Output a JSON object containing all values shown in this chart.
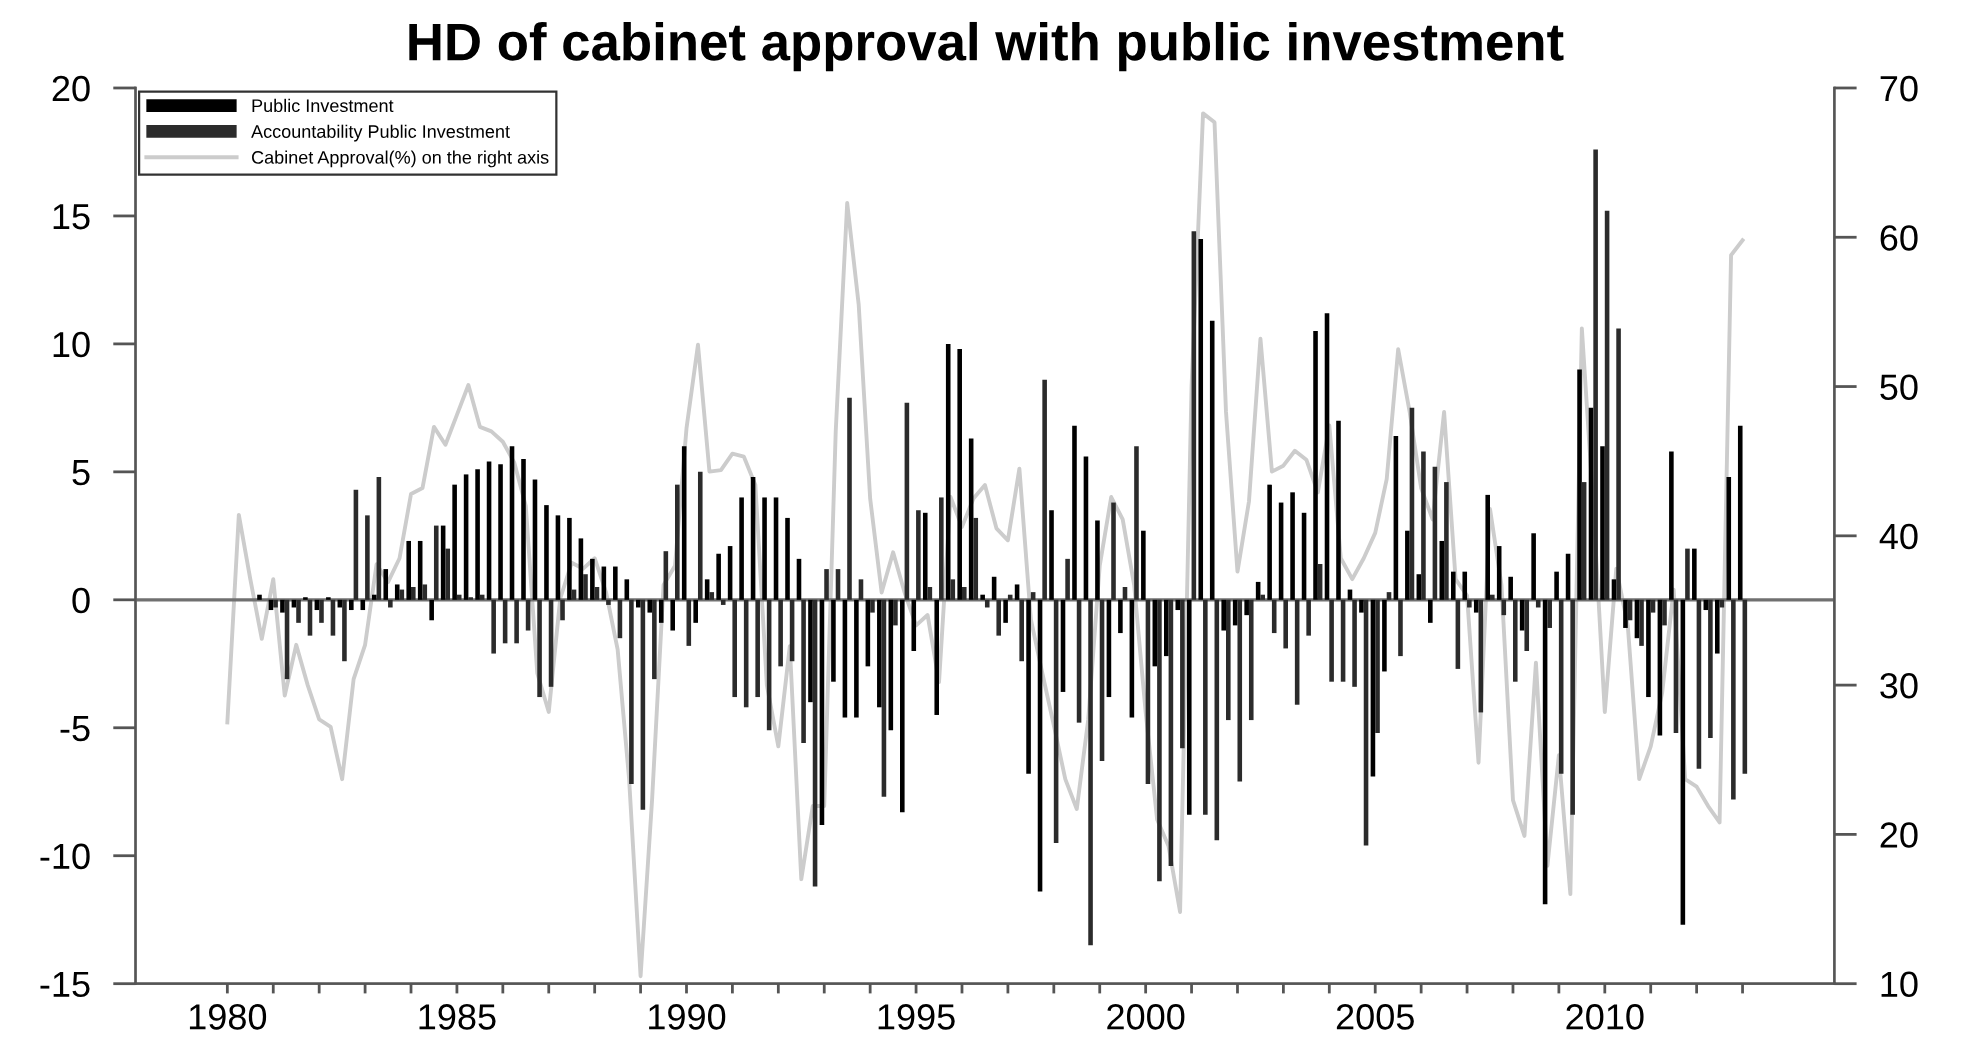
{
  "chart_data": {
    "type": "bar",
    "title": "HD of cabinet approval with public investment",
    "x": [
      1980,
      1980.25,
      1980.5,
      1980.75,
      1981,
      1981.25,
      1981.5,
      1981.75,
      1982,
      1982.25,
      1982.5,
      1982.75,
      1983,
      1983.25,
      1983.5,
      1983.75,
      1984,
      1984.25,
      1984.5,
      1984.75,
      1985,
      1985.25,
      1985.5,
      1985.75,
      1986,
      1986.25,
      1986.5,
      1986.75,
      1987,
      1987.25,
      1987.5,
      1987.75,
      1988,
      1988.25,
      1988.5,
      1988.75,
      1989,
      1989.25,
      1989.5,
      1989.75,
      1990,
      1990.25,
      1990.5,
      1990.75,
      1991,
      1991.25,
      1991.5,
      1991.75,
      1992,
      1992.25,
      1992.5,
      1992.75,
      1993,
      1993.25,
      1993.5,
      1993.75,
      1994,
      1994.25,
      1994.5,
      1994.75,
      1995,
      1995.25,
      1995.5,
      1995.75,
      1996,
      1996.25,
      1996.5,
      1996.75,
      1997,
      1997.25,
      1997.5,
      1997.75,
      1998,
      1998.25,
      1998.5,
      1998.75,
      1999,
      1999.25,
      1999.5,
      1999.75,
      2000,
      2000.25,
      2000.5,
      2000.75,
      2001,
      2001.25,
      2001.5,
      2001.75,
      2002,
      2002.25,
      2002.5,
      2002.75,
      2003,
      2003.25,
      2003.5,
      2003.75,
      2004,
      2004.25,
      2004.5,
      2004.75,
      2005,
      2005.25,
      2005.5,
      2005.75,
      2006,
      2006.25,
      2006.5,
      2006.75,
      2007,
      2007.25,
      2007.5,
      2007.75,
      2008,
      2008.25,
      2008.5,
      2008.75,
      2009,
      2009.25,
      2009.5,
      2009.75,
      2010,
      2010.25,
      2010.5,
      2010.75,
      2011,
      2011.25,
      2011.5,
      2011.75,
      2012,
      2012.25,
      2012.5,
      2012.75,
      2013
    ],
    "series": [
      {
        "name": "Public Investment",
        "color": "#000000",
        "values": [
          0,
          0,
          0,
          0.2,
          -0.4,
          -0.5,
          -0.3,
          0.1,
          -0.4,
          0.1,
          -0.3,
          -0.4,
          -0.4,
          0.2,
          1.2,
          0.6,
          2.3,
          2.3,
          -0.8,
          2.9,
          4.5,
          4.9,
          5.1,
          5.4,
          5.3,
          6.0,
          5.5,
          4.7,
          3.7,
          3.3,
          3.2,
          2.4,
          1.6,
          1.3,
          1.3,
          0.8,
          -0.3,
          -0.5,
          -0.9,
          -1.2,
          6.0,
          -0.9,
          0.8,
          1.8,
          2.1,
          4.0,
          4.8,
          4.0,
          4.0,
          3.2,
          1.6,
          -4.0,
          -8.8,
          -3.2,
          -4.6,
          -4.6,
          -2.6,
          -4.2,
          -5.1,
          -8.3,
          -2.0,
          3.4,
          -4.5,
          10.0,
          9.8,
          6.3,
          0.2,
          0.9,
          -0.9,
          0.6,
          -6.8,
          -11.4,
          3.5,
          -3.6,
          6.8,
          5.6,
          3.1,
          -3.8,
          -1.3,
          -4.6,
          2.7,
          -2.6,
          -2.2,
          -0.4,
          -8.4,
          14.1,
          10.9,
          -1.2,
          -1.0,
          -0.6,
          0.7,
          4.5,
          3.8,
          4.2,
          3.4,
          10.5,
          11.2,
          7.0,
          0.4,
          -0.5,
          -6.9,
          -2.8,
          6.4,
          2.7,
          1.0,
          -0.9,
          2.3,
          1.1,
          1.1,
          -0.5,
          4.1,
          2.1,
          0.9,
          -1.2,
          2.6,
          -11.9,
          1.1,
          1.8,
          9.0,
          7.5,
          6.0,
          0.8,
          -1.1,
          -1.5,
          -3.8,
          -5.3,
          5.8,
          -12.7,
          2.0,
          -0.4,
          -2.1,
          4.8,
          6.8
        ]
      },
      {
        "name": "Accountability Public Investment",
        "color": "#2b2b2b",
        "values": [
          0,
          0,
          0,
          0,
          -0.3,
          -3.1,
          -0.9,
          -1.4,
          -0.9,
          -1.4,
          -2.4,
          4.3,
          3.3,
          4.8,
          -0.3,
          0.4,
          0.5,
          0.6,
          2.9,
          2.0,
          0.2,
          0.1,
          0.2,
          -2.1,
          -1.7,
          -1.7,
          -1.2,
          -3.8,
          -3.4,
          -0.8,
          0.4,
          1.0,
          0.5,
          -0.2,
          -1.5,
          -7.2,
          -8.2,
          -3.1,
          1.9,
          4.5,
          -1.8,
          5.0,
          0.3,
          -0.2,
          -3.8,
          -4.2,
          -3.8,
          -5.1,
          -2.6,
          -2.4,
          -5.6,
          -11.2,
          1.2,
          1.2,
          7.9,
          0.8,
          -0.5,
          -7.7,
          -1.0,
          7.7,
          3.5,
          0.5,
          4.0,
          0.8,
          0.5,
          3.2,
          -0.3,
          -1.4,
          0.2,
          -2.4,
          0.3,
          8.6,
          -9.5,
          1.6,
          -4.8,
          -13.5,
          -6.3,
          3.8,
          0.5,
          6.0,
          -7.2,
          -11.0,
          -10.4,
          -5.8,
          14.4,
          -8.4,
          -9.4,
          -4.7,
          -7.1,
          -4.7,
          0.2,
          -1.3,
          -1.9,
          -4.1,
          -1.4,
          1.4,
          -3.2,
          -3.2,
          -3.4,
          -9.6,
          -5.2,
          0.3,
          -2.2,
          7.5,
          5.8,
          5.2,
          4.6,
          -2.7,
          -0.3,
          -4.4,
          0.2,
          -0.6,
          -3.2,
          -2.0,
          -0.3,
          -1.1,
          -6.8,
          -8.4,
          4.6,
          17.6,
          15.2,
          10.6,
          -0.8,
          -1.8,
          -0.5,
          -1.0,
          -5.2,
          2.0,
          -6.6,
          -5.4,
          -0.3,
          -7.8,
          -6.8
        ]
      },
      {
        "name": "Cabinet Approval(%) on the right axis",
        "type": "line",
        "axis": "y2",
        "color": "#cccccc",
        "values": [
          27.5,
          41.4,
          37.1,
          33.1,
          37.1,
          29.3,
          32.7,
          30.0,
          27.7,
          27.2,
          23.7,
          30.4,
          32.7,
          38.1,
          36.9,
          38.5,
          42.8,
          43.2,
          47.3,
          46.1,
          48.1,
          50.1,
          47.3,
          47.0,
          46.3,
          44.9,
          42.0,
          30.8,
          28.2,
          35.8,
          38.2,
          37.8,
          38.5,
          36.2,
          32.4,
          23.7,
          10.5,
          22.3,
          36.7,
          38.0,
          47.2,
          52.8,
          44.3,
          44.4,
          45.5,
          45.3,
          43.4,
          30.0,
          25.9,
          32.6,
          17.0,
          21.9,
          21.9,
          47.0,
          62.3,
          55.5,
          42.5,
          36.2,
          38.9,
          36.2,
          34.0,
          34.7,
          30.2,
          42.6,
          40.6,
          42.5,
          43.4,
          40.5,
          39.7,
          44.5,
          34.4,
          30.8,
          27.3,
          23.7,
          21.7,
          27.7,
          38.0,
          42.6,
          41.1,
          36.7,
          28.2,
          21.0,
          19.2,
          14.8,
          50.0,
          68.3,
          67.7,
          48.3,
          37.6,
          42.3,
          53.2,
          44.3,
          44.7,
          45.7,
          45.1,
          42.9,
          47.4,
          38.5,
          37.1,
          38.5,
          40.2,
          43.8,
          52.5,
          48.3,
          43.2,
          41.1,
          48.3,
          37.1,
          36.0,
          24.8,
          41.8,
          36.7,
          22.3,
          19.9,
          31.5,
          17.9,
          25.3,
          16.0,
          53.9,
          42.0,
          28.2,
          37.8,
          34.0,
          23.7,
          25.9,
          29.5,
          36.4,
          23.7,
          23.2,
          21.9,
          20.8,
          58.8,
          59.8
        ]
      }
    ],
    "xlim": [
      1978,
      2015
    ],
    "xticks": [
      1980,
      {
        "value": 1981,
        "label": null
      },
      {
        "value": 1982,
        "label": null
      },
      {
        "value": 1983,
        "label": null
      },
      {
        "value": 1984,
        "label": null
      },
      1985,
      {
        "value": 1986,
        "label": null
      },
      {
        "value": 1987,
        "label": null
      },
      {
        "value": 1988,
        "label": null
      },
      {
        "value": 1989,
        "label": null
      },
      1990,
      {
        "value": 1991,
        "label": null
      },
      {
        "value": 1992,
        "label": null
      },
      {
        "value": 1993,
        "label": null
      },
      {
        "value": 1994,
        "label": null
      },
      1995,
      {
        "value": 1996,
        "label": null
      },
      {
        "value": 1997,
        "label": null
      },
      {
        "value": 1998,
        "label": null
      },
      {
        "value": 1999,
        "label": null
      },
      2000,
      {
        "value": 2001,
        "label": null
      },
      {
        "value": 2002,
        "label": null
      },
      {
        "value": 2003,
        "label": null
      },
      {
        "value": 2004,
        "label": null
      },
      2005,
      {
        "value": 2006,
        "label": null
      },
      {
        "value": 2007,
        "label": null
      },
      {
        "value": 2008,
        "label": null
      },
      {
        "value": 2009,
        "label": null
      },
      2010,
      {
        "value": 2011,
        "label": null
      },
      {
        "value": 2012,
        "label": null
      },
      {
        "value": 2013,
        "label": null
      }
    ],
    "ylim": [
      -15,
      20
    ],
    "yticks": [
      -15,
      -10,
      -5,
      0,
      5,
      10,
      15,
      20
    ],
    "y2lim": [
      10,
      70
    ],
    "y2ticks": [
      10,
      20,
      30,
      40,
      50,
      60,
      70
    ],
    "ref_lines": [
      {
        "axis": "y",
        "value": 0,
        "color": "#707070"
      }
    ],
    "grid": false,
    "legend": "top left"
  }
}
